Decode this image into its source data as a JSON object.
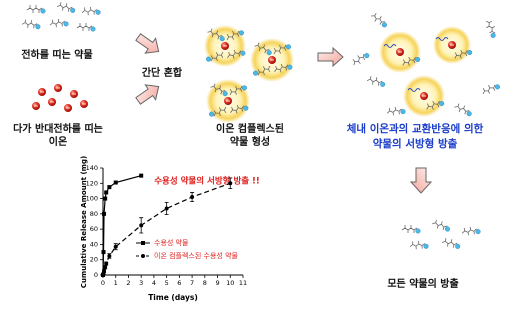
{
  "diagram": {
    "drug_label": "전하를 띠는 약물",
    "ion_label": [
      "다가 반대전하를 띠는",
      "이온"
    ],
    "mix_label": "간단 혼합",
    "complex_label": [
      "이온 컴플렉스된",
      "약물 형성"
    ],
    "exchange_label": [
      "체내 이온과의 교환반응에 의한",
      "약물의 서방형 방출"
    ],
    "release_label": "모든 약물의 방출"
  },
  "chart_data": {
    "type": "line",
    "title": "수용성 약물의 서방형 방출 !!",
    "xlabel": "Time (days)",
    "ylabel": "Cumulative Release Amount (mg)",
    "xlim": [
      0,
      11
    ],
    "ylim": [
      0,
      140
    ],
    "xticks": [
      0,
      1,
      2,
      3,
      4,
      5,
      6,
      7,
      8,
      9,
      10,
      11
    ],
    "yticks": [
      0,
      20,
      40,
      60,
      80,
      100,
      120,
      140
    ],
    "legend": "lower right",
    "series": [
      {
        "name": "수용성 약물",
        "color": "#000000",
        "style": "solid",
        "marker": "square",
        "x": [
          0,
          0.04,
          0.08,
          0.17,
          0.25,
          0.5,
          1,
          3
        ],
        "values": [
          0,
          30,
          80,
          100,
          108,
          115,
          121,
          130
        ]
      },
      {
        "name": "이온 컴플렉스된 수용성 약물",
        "color": "#000000",
        "style": "dashed",
        "marker": "circle",
        "x": [
          0,
          0.04,
          0.08,
          0.17,
          0.25,
          0.5,
          1,
          3,
          5,
          7,
          10
        ],
        "values": [
          0,
          2,
          5,
          10,
          15,
          25,
          37,
          65,
          87,
          102,
          120
        ],
        "errors": [
          0,
          1,
          2,
          2,
          2,
          3,
          4,
          10,
          8,
          6,
          7
        ]
      }
    ]
  }
}
